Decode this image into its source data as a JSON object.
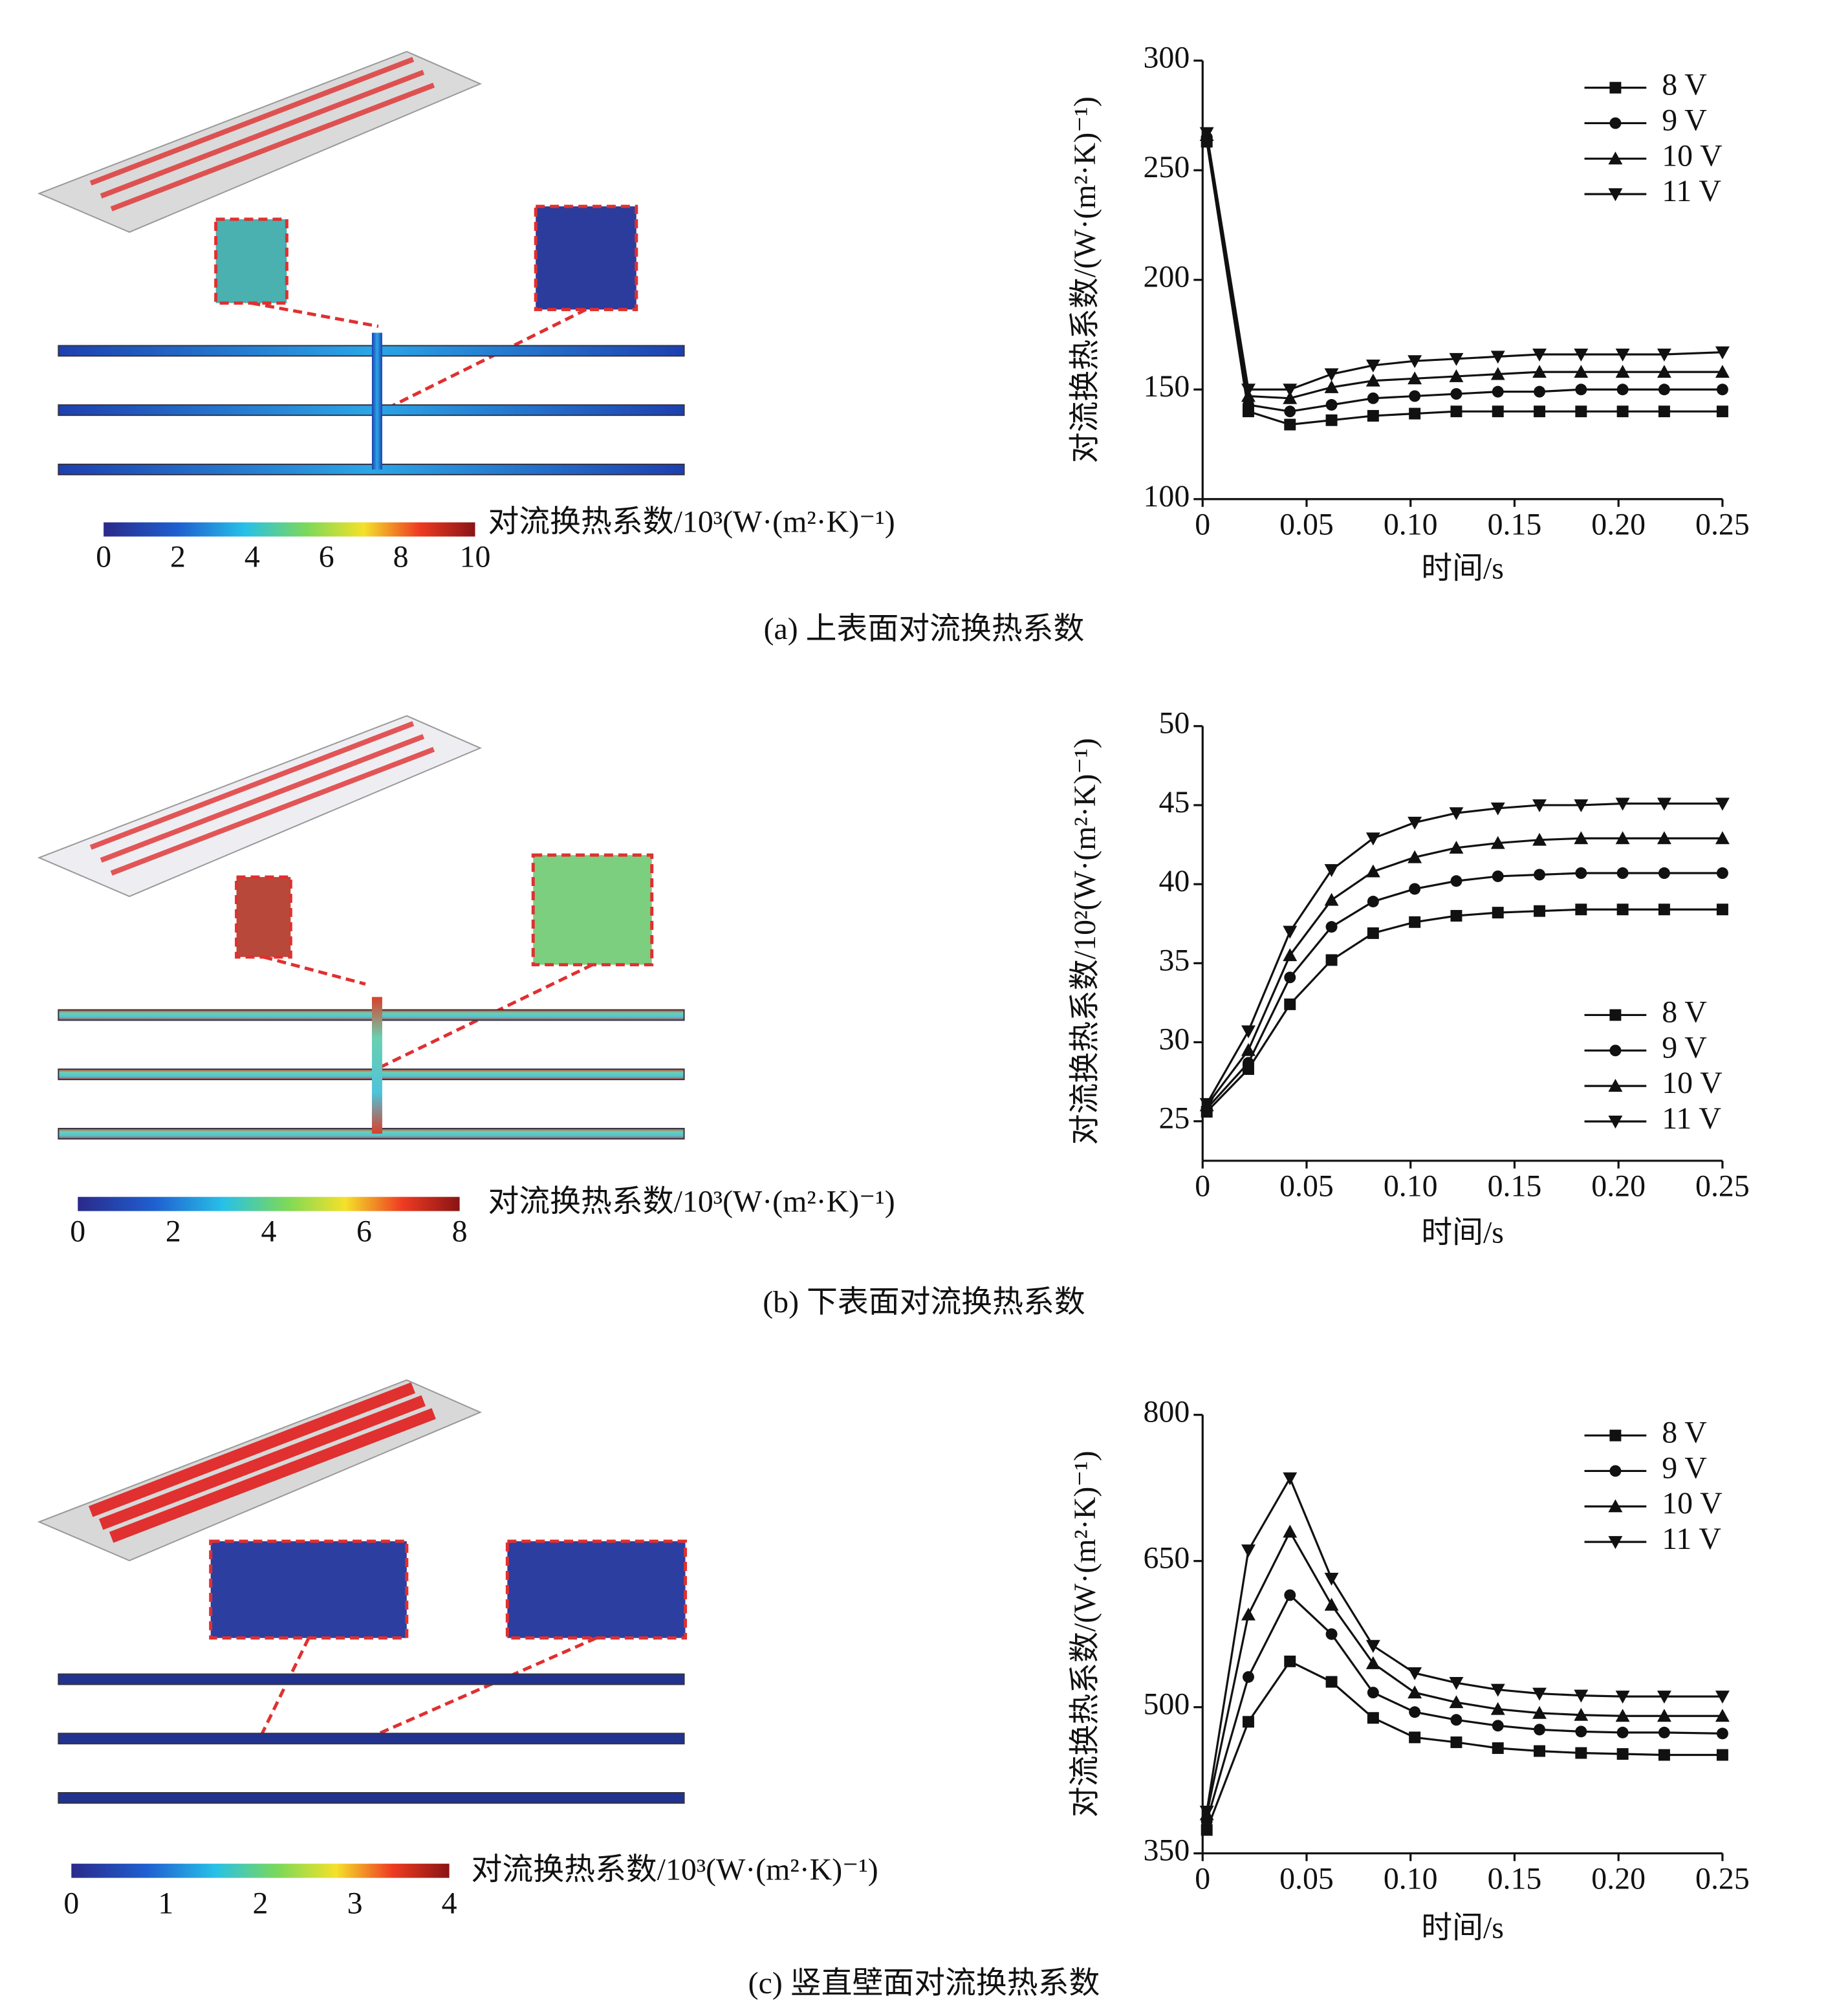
{
  "chart_data": [
    {
      "type": "line",
      "y_label": "对流换热系数/(W·(m²·K)⁻¹)",
      "x_label": "时间/s",
      "x": [
        0.002,
        0.022,
        0.042,
        0.062,
        0.082,
        0.102,
        0.122,
        0.142,
        0.162,
        0.182,
        0.202,
        0.222,
        0.25
      ],
      "xlim": [
        0,
        0.25
      ],
      "xticks": [
        0,
        0.05,
        {
          "value": 0.1,
          "label": "0.10"
        },
        0.15,
        {
          "value": 0.2,
          "label": "0.20"
        },
        0.25
      ],
      "ylim": [
        100,
        300
      ],
      "yticks": [
        100,
        150,
        200,
        250,
        300
      ],
      "legend": "upper right",
      "series": [
        {
          "name": "8 V",
          "color": "#111111",
          "marker": "square",
          "values": [
            263,
            140,
            134,
            136,
            138,
            139,
            140,
            140,
            140,
            140,
            140,
            140,
            140
          ]
        },
        {
          "name": "9 V",
          "color": "#111111",
          "marker": "circle",
          "values": [
            265,
            143,
            140,
            143,
            146,
            147,
            148,
            149,
            149,
            150,
            150,
            150,
            150
          ]
        },
        {
          "name": "10 V",
          "color": "#111111",
          "marker": "triangle-up",
          "values": [
            266,
            147,
            146,
            151,
            154,
            155,
            156,
            157,
            158,
            158,
            158,
            158,
            158
          ]
        },
        {
          "name": "11 V",
          "color": "#111111",
          "marker": "triangle-down",
          "values": [
            267,
            150,
            150,
            157,
            161,
            163,
            164,
            165,
            166,
            166,
            166,
            166,
            167
          ]
        }
      ]
    },
    {
      "type": "line",
      "y_label": "对流换热系数/10²(W·(m²·K)⁻¹)",
      "x_label": "时间/s",
      "x": [
        0.002,
        0.022,
        0.042,
        0.062,
        0.082,
        0.102,
        0.122,
        0.142,
        0.162,
        0.182,
        0.202,
        0.222,
        0.25
      ],
      "xlim": [
        0,
        0.25
      ],
      "xticks": [
        0,
        0.05,
        {
          "value": 0.1,
          "label": "0.10"
        },
        0.15,
        {
          "value": 0.2,
          "label": "0.20"
        },
        0.25
      ],
      "ylim": [
        22.5,
        50
      ],
      "yticks": [
        25,
        30,
        35,
        40,
        45,
        50
      ],
      "legend": "lower right",
      "series": [
        {
          "name": "8 V",
          "color": "#111111",
          "marker": "square",
          "values": [
            25.6,
            28.3,
            32.4,
            35.2,
            36.9,
            37.6,
            38.0,
            38.2,
            38.3,
            38.4,
            38.4,
            38.4,
            38.4
          ]
        },
        {
          "name": "9 V",
          "color": "#111111",
          "marker": "circle",
          "values": [
            25.8,
            28.7,
            34.1,
            37.3,
            38.9,
            39.7,
            40.2,
            40.5,
            40.6,
            40.7,
            40.7,
            40.7,
            40.7
          ]
        },
        {
          "name": "10 V",
          "color": "#111111",
          "marker": "triangle-up",
          "values": [
            26.0,
            29.5,
            35.5,
            39.0,
            40.8,
            41.7,
            42.3,
            42.6,
            42.8,
            42.9,
            42.9,
            42.9,
            42.9
          ]
        },
        {
          "name": "11 V",
          "color": "#111111",
          "marker": "triangle-down",
          "values": [
            26.1,
            30.7,
            37.0,
            40.9,
            42.9,
            43.9,
            44.5,
            44.8,
            45.0,
            45.0,
            45.1,
            45.1,
            45.1
          ]
        }
      ]
    },
    {
      "type": "line",
      "y_label": "对流换热系数/(W·(m²·K)⁻¹)",
      "x_label": "时间/s",
      "x": [
        0.002,
        0.022,
        0.042,
        0.062,
        0.082,
        0.102,
        0.122,
        0.142,
        0.162,
        0.182,
        0.202,
        0.222,
        0.25
      ],
      "xlim": [
        0,
        0.25
      ],
      "xticks": [
        0,
        0.05,
        {
          "value": 0.1,
          "label": "0.10"
        },
        0.15,
        {
          "value": 0.2,
          "label": "0.20"
        },
        0.25
      ],
      "ylim": [
        350,
        800
      ],
      "yticks": [
        350,
        500,
        650,
        800
      ],
      "legend": "upper right",
      "series": [
        {
          "name": "8 V",
          "color": "#111111",
          "marker": "square",
          "values": [
            374,
            485,
            547,
            526,
            489,
            469,
            464,
            458,
            455,
            453,
            452,
            451,
            451
          ]
        },
        {
          "name": "9 V",
          "color": "#111111",
          "marker": "circle",
          "values": [
            383,
            531,
            615,
            575,
            515,
            495,
            487,
            481,
            477,
            475,
            474,
            474,
            473
          ]
        },
        {
          "name": "10 V",
          "color": "#111111",
          "marker": "triangle-up",
          "values": [
            390,
            595,
            680,
            605,
            545,
            515,
            505,
            498,
            494,
            492,
            491,
            491,
            491
          ]
        },
        {
          "name": "11 V",
          "color": "#111111",
          "marker": "triangle-down",
          "values": [
            393,
            661,
            735,
            632,
            563,
            535,
            525,
            518,
            514,
            512,
            511,
            511,
            511
          ]
        }
      ]
    }
  ],
  "panels": [
    {
      "caption": "(a) 上表面对流换热系数",
      "colorbar": {
        "label": "对流换热系数/10³(W·(m²·K)⁻¹)",
        "lim": [
          0,
          10
        ],
        "ticks": [
          0,
          2,
          4,
          6,
          8,
          10
        ]
      }
    },
    {
      "caption": "(b) 下表面对流换热系数",
      "colorbar": {
        "label": "对流换热系数/10³(W·(m²·K)⁻¹)",
        "lim": [
          0,
          8
        ],
        "ticks": [
          0,
          2,
          4,
          6,
          8
        ]
      }
    },
    {
      "caption": "(c) 竖直壁面对流换热系数",
      "colorbar": {
        "label": "对流换热系数/10³(W·(m²·K)⁻¹)",
        "lim": [
          0,
          4
        ],
        "ticks": [
          0,
          1,
          2,
          3,
          4
        ]
      }
    }
  ]
}
